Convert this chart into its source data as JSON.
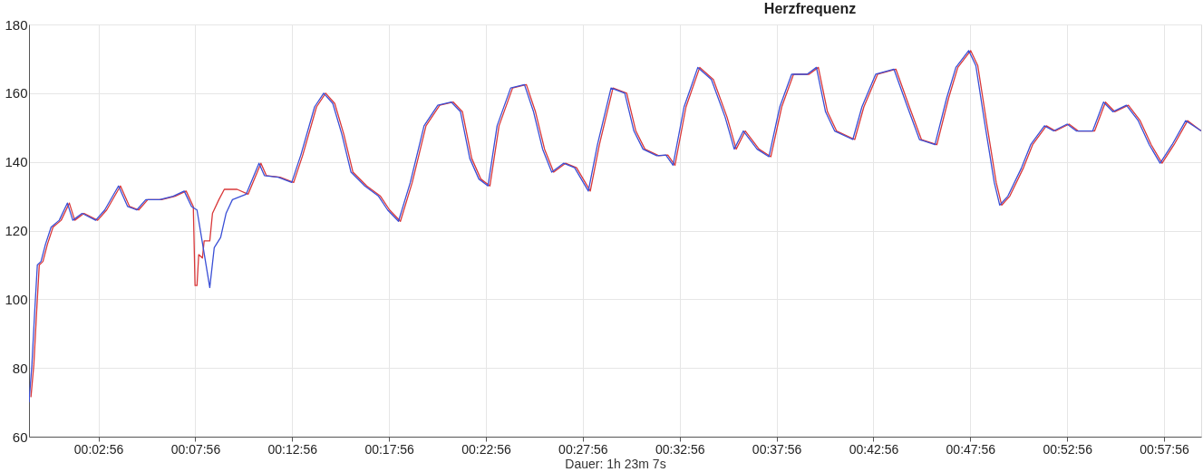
{
  "chart_data": {
    "type": "line",
    "title": "Herzfrequenz",
    "xlabel": "Dauer: 1h 23m 7s",
    "xlim": [
      -0.65,
      59.85
    ],
    "ylim": [
      60,
      180
    ],
    "yticks": [
      60,
      80,
      100,
      120,
      140,
      160,
      180
    ],
    "xticks": [
      {
        "value": 2.933,
        "label": "00:02:56"
      },
      {
        "value": 7.933,
        "label": "00:07:56"
      },
      {
        "value": 12.933,
        "label": "00:12:56"
      },
      {
        "value": 17.933,
        "label": "00:17:56"
      },
      {
        "value": 22.933,
        "label": "00:22:56"
      },
      {
        "value": 27.933,
        "label": "00:27:56"
      },
      {
        "value": 32.933,
        "label": "00:32:56"
      },
      {
        "value": 37.933,
        "label": "00:37:56"
      },
      {
        "value": 42.933,
        "label": "00:42:56"
      },
      {
        "value": 47.933,
        "label": "00:47:56"
      },
      {
        "value": 52.933,
        "label": "00:52:56"
      },
      {
        "value": 57.933,
        "label": "00:57:56"
      }
    ],
    "grid": true,
    "legend": false,
    "marker": "none",
    "line_style": "solid",
    "series": [
      {
        "color": "#d9383a",
        "x": [
          -0.55,
          -0.4,
          -0.26,
          -0.12,
          0.07,
          0.3,
          0.59,
          1.01,
          1.43,
          1.71,
          2.19,
          2.89,
          3.36,
          4.07,
          4.54,
          5.01,
          5.48,
          6.19,
          6.89,
          7.46,
          7.83,
          7.92,
          8.02,
          8.11,
          8.3,
          8.39,
          8.68,
          8.82,
          9.15,
          9.43,
          10.09,
          10.66,
          11.32,
          11.6,
          12.31,
          13.01,
          13.48,
          14.19,
          14.66,
          15.13,
          15.6,
          16.07,
          16.78,
          17.49,
          17.96,
          18.52,
          19.13,
          19.84,
          20.55,
          21.25,
          21.72,
          22.2,
          22.67,
          23.14,
          23.61,
          24.31,
          25.02,
          25.49,
          25.96,
          26.43,
          27.04,
          27.61,
          28.32,
          28.79,
          29.49,
          30.2,
          30.67,
          31.14,
          31.85,
          32.32,
          32.69,
          33.26,
          33.97,
          34.67,
          35.38,
          35.85,
          36.32,
          37.03,
          37.64,
          38.2,
          38.81,
          39.61,
          40.09,
          40.56,
          41.03,
          41.97,
          42.44,
          43.15,
          44.09,
          44.79,
          45.41,
          46.21,
          46.82,
          47.29,
          47.95,
          48.32,
          48.8,
          49.27,
          49.55,
          49.97,
          50.68,
          51.15,
          51.86,
          52.33,
          53.03,
          53.5,
          54.35,
          54.91,
          55.39,
          56.09,
          56.7,
          57.27,
          57.83,
          58.45,
          59.15,
          59.85
        ],
        "values": [
          71.5,
          81,
          96,
          110,
          111,
          116,
          121,
          123,
          128,
          123,
          125,
          123,
          126,
          133,
          127,
          126,
          129,
          129,
          130,
          131.5,
          127,
          104,
          104,
          113,
          112,
          117,
          117,
          125,
          129,
          132,
          132,
          130.6,
          139.6,
          136,
          135.5,
          134,
          142,
          156,
          160,
          157,
          148,
          137,
          133,
          130,
          126,
          122.7,
          134,
          150.5,
          156.5,
          157.4,
          154.6,
          141,
          135,
          133,
          150.5,
          161.5,
          162.5,
          154.6,
          143.7,
          137,
          139.6,
          138.3,
          131.5,
          145,
          161.5,
          160,
          149,
          143.7,
          141.8,
          142,
          139,
          156,
          167.5,
          164,
          153,
          143.7,
          149,
          143.7,
          141.5,
          156,
          165.5,
          165.5,
          167.5,
          154.6,
          149,
          146.5,
          156,
          165.5,
          167,
          156,
          146.5,
          145,
          158.7,
          167.5,
          172.4,
          168,
          150.5,
          134,
          127.4,
          130,
          138.3,
          145,
          150.5,
          149,
          151,
          149,
          149,
          157.4,
          154.6,
          156.5,
          152,
          145,
          139.6,
          145,
          152,
          149
        ]
      },
      {
        "color": "#3a4fd6",
        "x": [
          -0.65,
          -0.5,
          -0.36,
          -0.22,
          -0.03,
          0.2,
          0.49,
          0.91,
          1.33,
          1.61,
          2.09,
          2.79,
          3.26,
          3.97,
          4.44,
          4.91,
          5.38,
          6.09,
          6.79,
          7.36,
          7.74,
          8.02,
          8.68,
          8.91,
          9.24,
          9.52,
          9.85,
          10.56,
          11.22,
          11.5,
          12.21,
          12.91,
          13.38,
          14.09,
          14.56,
          15.03,
          15.5,
          15.97,
          16.68,
          17.39,
          17.86,
          18.42,
          19.03,
          19.74,
          20.45,
          21.15,
          21.62,
          22.1,
          22.57,
          23.04,
          23.51,
          24.21,
          24.92,
          25.39,
          25.86,
          26.33,
          26.94,
          27.51,
          28.22,
          28.69,
          29.39,
          30.1,
          30.57,
          31.04,
          31.75,
          32.22,
          32.59,
          33.16,
          33.87,
          34.57,
          35.28,
          35.75,
          36.22,
          36.93,
          37.54,
          38.1,
          38.71,
          39.51,
          39.99,
          40.46,
          40.93,
          41.87,
          42.34,
          43.05,
          43.99,
          44.69,
          45.31,
          46.11,
          46.72,
          47.19,
          47.85,
          48.22,
          48.7,
          49.17,
          49.45,
          49.87,
          50.58,
          51.05,
          51.76,
          52.23,
          52.93,
          53.4,
          54.25,
          54.81,
          55.29,
          55.99,
          56.6,
          57.17,
          57.73,
          58.35,
          59.05,
          59.85
        ],
        "values": [
          70,
          81,
          96,
          110,
          111,
          116,
          121,
          123,
          128,
          123,
          125,
          123,
          126,
          133,
          127,
          126,
          129,
          129,
          130,
          131.5,
          127,
          126,
          103.4,
          115,
          118,
          125,
          129,
          130.6,
          139.6,
          136,
          135.5,
          134,
          142,
          156,
          160,
          157,
          148,
          137,
          133,
          130,
          126,
          122.7,
          134,
          150.5,
          156.5,
          157.4,
          154.6,
          141,
          135,
          133,
          150.5,
          161.5,
          162.5,
          154.6,
          143.7,
          137,
          139.6,
          138.3,
          131.5,
          145,
          161.5,
          160,
          149,
          143.7,
          141.8,
          142,
          139,
          156,
          167.5,
          164,
          153,
          143.7,
          149,
          143.7,
          141.5,
          156,
          165.5,
          165.5,
          167.5,
          154.6,
          149,
          146.5,
          156,
          165.5,
          167,
          156,
          146.5,
          145,
          158.7,
          167.5,
          172.4,
          168,
          150.5,
          134,
          127.4,
          130,
          138.3,
          145,
          150.5,
          149,
          151,
          149,
          149,
          157.4,
          154.6,
          156.5,
          152,
          145,
          139.6,
          145,
          152,
          149
        ]
      }
    ]
  }
}
